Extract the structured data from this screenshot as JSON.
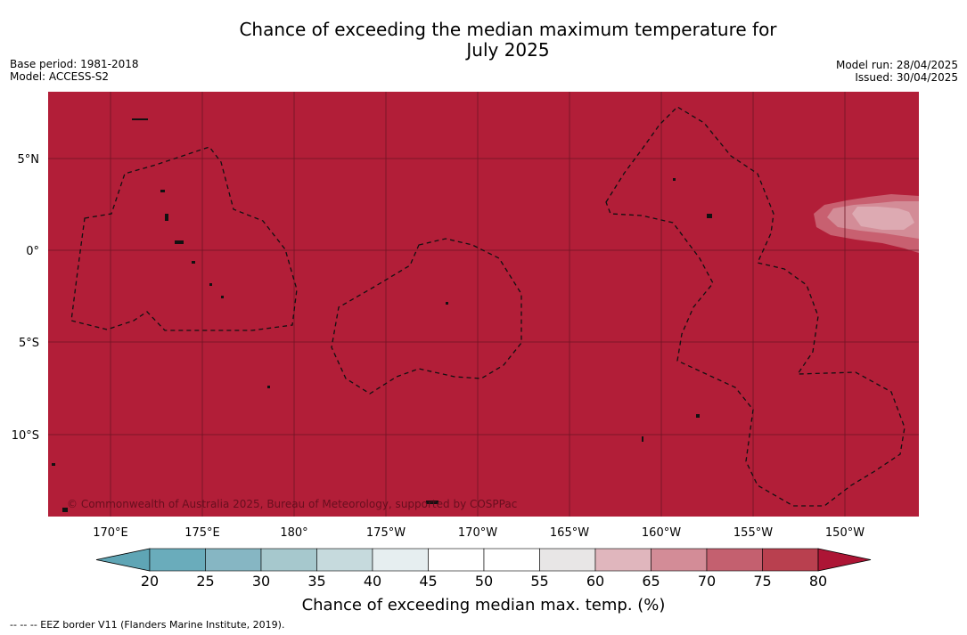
{
  "header": {
    "title_line1": "Chance of exceeding the median maximum temperature for",
    "title_line2": "July 2025",
    "base_period": "Base period: 1981-2018",
    "model": "Model: ACCESS-S2",
    "model_run": "Model run: 28/04/2025",
    "issued": "Issued: 30/04/2025"
  },
  "map": {
    "fill_color": "#b21e38",
    "lon_labels": [
      "170°E",
      "175°E",
      "180°",
      "175°W",
      "170°W",
      "165°W",
      "160°W",
      "155°W",
      "150°W"
    ],
    "lat_labels": [
      "5°N",
      "0°",
      "5°S",
      "10°S"
    ],
    "credit": "© Commonwealth of Australia 2025, Bureau of Meteorology, supported by COSPPac"
  },
  "colorbar": {
    "ticks": [
      "20",
      "25",
      "30",
      "35",
      "40",
      "45",
      "50",
      "55",
      "60",
      "65",
      "70",
      "75",
      "80"
    ],
    "colors": [
      "#5fa5b5",
      "#6aacbb",
      "#86b6c3",
      "#a6c8cd",
      "#c6dadd",
      "#e6eef0",
      "#ffffff",
      "#ffffff",
      "#e8e6e6",
      "#e0b6bd",
      "#d38c97",
      "#c4606f",
      "#b9404f",
      "#ad1535"
    ],
    "label": "Chance of exceeding median max. temp. (%)"
  },
  "footer": {
    "legend": "--  --  -- EEZ border V11 (Flanders Marine Institute, 2019)."
  }
}
